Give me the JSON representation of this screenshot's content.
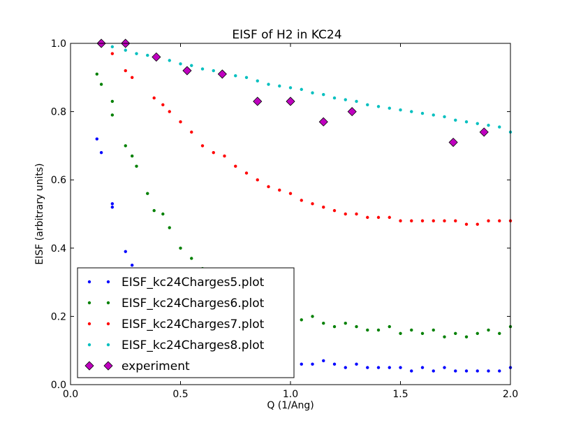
{
  "chart_data": {
    "type": "scatter",
    "title": "EISF of H2 in KC24",
    "xlabel": "Q (1/Ang)",
    "ylabel": "EISF (arbitrary units)",
    "xlim": [
      0.0,
      2.0
    ],
    "ylim": [
      0.0,
      1.0
    ],
    "x_ticks": [
      "0.0",
      "0.5",
      "1.0",
      "1.5",
      "2.0"
    ],
    "y_ticks": [
      "0.0",
      "0.2",
      "0.4",
      "0.6",
      "0.8",
      "1.0"
    ],
    "grid": false,
    "legend_position": "lower-left",
    "series": [
      {
        "name": "EISF_kc24Charges5.plot",
        "color": "#0000ff",
        "marker": "circle",
        "points": [
          [
            0.12,
            0.72
          ],
          [
            0.14,
            0.68
          ],
          [
            0.19,
            0.53
          ],
          [
            0.19,
            0.52
          ],
          [
            0.25,
            0.39
          ],
          [
            0.28,
            0.35
          ],
          [
            0.45,
            0.25
          ],
          [
            0.55,
            0.17
          ],
          [
            0.6,
            0.16
          ],
          [
            0.7,
            0.12
          ],
          [
            0.75,
            0.1
          ],
          [
            0.8,
            0.09
          ],
          [
            0.85,
            0.08
          ],
          [
            0.9,
            0.08
          ],
          [
            0.95,
            0.07
          ],
          [
            1.0,
            0.07
          ],
          [
            1.05,
            0.06
          ],
          [
            1.1,
            0.06
          ],
          [
            1.15,
            0.07
          ],
          [
            1.2,
            0.06
          ],
          [
            1.25,
            0.05
          ],
          [
            1.3,
            0.06
          ],
          [
            1.35,
            0.05
          ],
          [
            1.4,
            0.05
          ],
          [
            1.45,
            0.05
          ],
          [
            1.5,
            0.05
          ],
          [
            1.55,
            0.04
          ],
          [
            1.6,
            0.05
          ],
          [
            1.65,
            0.04
          ],
          [
            1.7,
            0.05
          ],
          [
            1.75,
            0.04
          ],
          [
            1.8,
            0.04
          ],
          [
            1.85,
            0.04
          ],
          [
            1.9,
            0.04
          ],
          [
            1.95,
            0.04
          ],
          [
            2.0,
            0.05
          ]
        ]
      },
      {
        "name": "EISF_kc24Charges6.plot",
        "color": "#008000",
        "marker": "circle",
        "points": [
          [
            0.12,
            0.91
          ],
          [
            0.14,
            0.88
          ],
          [
            0.19,
            0.83
          ],
          [
            0.19,
            0.79
          ],
          [
            0.25,
            0.7
          ],
          [
            0.28,
            0.67
          ],
          [
            0.3,
            0.64
          ],
          [
            0.35,
            0.56
          ],
          [
            0.38,
            0.51
          ],
          [
            0.42,
            0.5
          ],
          [
            0.45,
            0.46
          ],
          [
            0.5,
            0.4
          ],
          [
            0.55,
            0.37
          ],
          [
            0.6,
            0.34
          ],
          [
            0.65,
            0.32
          ],
          [
            0.7,
            0.3
          ],
          [
            0.75,
            0.28
          ],
          [
            0.8,
            0.26
          ],
          [
            0.85,
            0.24
          ],
          [
            0.9,
            0.22
          ],
          [
            0.95,
            0.21
          ],
          [
            1.0,
            0.2
          ],
          [
            1.05,
            0.19
          ],
          [
            1.1,
            0.2
          ],
          [
            1.15,
            0.18
          ],
          [
            1.2,
            0.17
          ],
          [
            1.25,
            0.18
          ],
          [
            1.3,
            0.17
          ],
          [
            1.35,
            0.16
          ],
          [
            1.4,
            0.16
          ],
          [
            1.45,
            0.17
          ],
          [
            1.5,
            0.15
          ],
          [
            1.55,
            0.16
          ],
          [
            1.6,
            0.15
          ],
          [
            1.65,
            0.16
          ],
          [
            1.7,
            0.14
          ],
          [
            1.75,
            0.15
          ],
          [
            1.8,
            0.14
          ],
          [
            1.85,
            0.15
          ],
          [
            1.9,
            0.16
          ],
          [
            1.95,
            0.15
          ],
          [
            2.0,
            0.17
          ]
        ]
      },
      {
        "name": "EISF_kc24Charges7.plot",
        "color": "#ff0000",
        "marker": "circle",
        "points": [
          [
            0.14,
            1.0
          ],
          [
            0.19,
            0.97
          ],
          [
            0.25,
            0.92
          ],
          [
            0.28,
            0.9
          ],
          [
            0.38,
            0.84
          ],
          [
            0.42,
            0.82
          ],
          [
            0.45,
            0.8
          ],
          [
            0.5,
            0.77
          ],
          [
            0.55,
            0.74
          ],
          [
            0.6,
            0.7
          ],
          [
            0.65,
            0.68
          ],
          [
            0.7,
            0.67
          ],
          [
            0.75,
            0.64
          ],
          [
            0.8,
            0.62
          ],
          [
            0.85,
            0.6
          ],
          [
            0.9,
            0.58
          ],
          [
            0.95,
            0.57
          ],
          [
            1.0,
            0.56
          ],
          [
            1.05,
            0.54
          ],
          [
            1.1,
            0.53
          ],
          [
            1.15,
            0.52
          ],
          [
            1.2,
            0.51
          ],
          [
            1.25,
            0.5
          ],
          [
            1.3,
            0.5
          ],
          [
            1.35,
            0.49
          ],
          [
            1.4,
            0.49
          ],
          [
            1.45,
            0.49
          ],
          [
            1.5,
            0.48
          ],
          [
            1.55,
            0.48
          ],
          [
            1.6,
            0.48
          ],
          [
            1.65,
            0.48
          ],
          [
            1.7,
            0.48
          ],
          [
            1.75,
            0.48
          ],
          [
            1.8,
            0.47
          ],
          [
            1.85,
            0.47
          ],
          [
            1.9,
            0.48
          ],
          [
            1.95,
            0.48
          ],
          [
            2.0,
            0.48
          ]
        ]
      },
      {
        "name": "EISF_kc24Charges8.plot",
        "color": "#00bfbf",
        "marker": "circle",
        "points": [
          [
            0.14,
            1.0
          ],
          [
            0.19,
            0.99
          ],
          [
            0.25,
            0.98
          ],
          [
            0.3,
            0.97
          ],
          [
            0.35,
            0.965
          ],
          [
            0.4,
            0.96
          ],
          [
            0.45,
            0.95
          ],
          [
            0.5,
            0.94
          ],
          [
            0.55,
            0.935
          ],
          [
            0.6,
            0.925
          ],
          [
            0.65,
            0.92
          ],
          [
            0.7,
            0.91
          ],
          [
            0.75,
            0.905
          ],
          [
            0.8,
            0.9
          ],
          [
            0.85,
            0.89
          ],
          [
            0.9,
            0.88
          ],
          [
            0.95,
            0.875
          ],
          [
            1.0,
            0.87
          ],
          [
            1.05,
            0.865
          ],
          [
            1.1,
            0.855
          ],
          [
            1.15,
            0.85
          ],
          [
            1.2,
            0.84
          ],
          [
            1.25,
            0.835
          ],
          [
            1.3,
            0.83
          ],
          [
            1.35,
            0.82
          ],
          [
            1.4,
            0.815
          ],
          [
            1.45,
            0.81
          ],
          [
            1.5,
            0.805
          ],
          [
            1.55,
            0.8
          ],
          [
            1.6,
            0.795
          ],
          [
            1.65,
            0.79
          ],
          [
            1.7,
            0.785
          ],
          [
            1.75,
            0.775
          ],
          [
            1.8,
            0.77
          ],
          [
            1.85,
            0.765
          ],
          [
            1.9,
            0.76
          ],
          [
            1.95,
            0.755
          ],
          [
            2.0,
            0.74
          ]
        ]
      },
      {
        "name": "experiment",
        "color": "#bf00bf",
        "marker": "diamond",
        "points": [
          [
            0.14,
            1.0
          ],
          [
            0.25,
            1.0
          ],
          [
            0.39,
            0.96
          ],
          [
            0.53,
            0.92
          ],
          [
            0.69,
            0.91
          ],
          [
            0.85,
            0.83
          ],
          [
            1.0,
            0.83
          ],
          [
            1.15,
            0.77
          ],
          [
            1.28,
            0.8
          ],
          [
            1.74,
            0.71
          ],
          [
            1.88,
            0.74
          ]
        ]
      }
    ]
  }
}
